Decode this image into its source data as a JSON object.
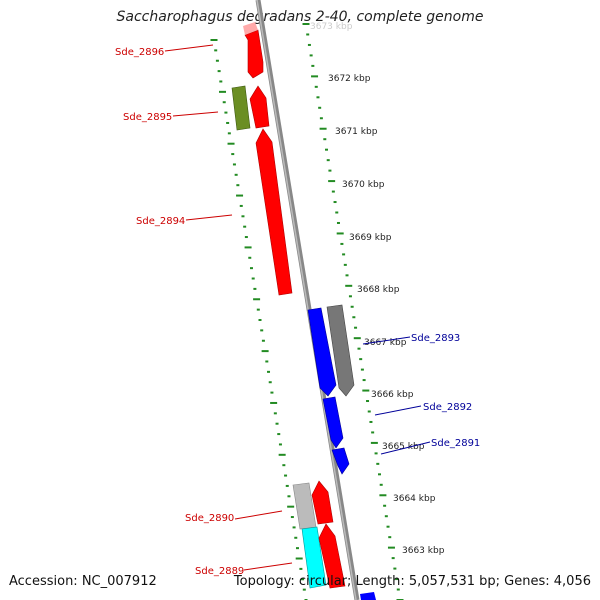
{
  "title": "Saccharophagus degradans 2-40, complete genome",
  "accession": "Accession: NC_007912",
  "summary": "Topology: circular; Length: 5,057,531 bp; Genes: 4,056",
  "colors": {
    "backbone": "#888888",
    "tick": "#228b22",
    "forward_gene": "#ff0000",
    "reverse_gene": "#0000ff",
    "olive_gene": "#6b8e23",
    "gray_gene": "#777777",
    "lightgray_gene": "#bbbbbb",
    "cyan_gene": "#00ffff",
    "forward_label": "#cc0000",
    "reverse_label": "#000099"
  },
  "kbp_ticks": [
    "3673 kbp",
    "3672 kbp",
    "3671 kbp",
    "3670 kbp",
    "3669 kbp",
    "3668 kbp",
    "3667 kbp",
    "3666 kbp",
    "3665 kbp",
    "3664 kbp",
    "3663 kbp"
  ],
  "gene_labels": [
    {
      "text": "Sde_2896",
      "strand": "forward"
    },
    {
      "text": "Sde_2895",
      "strand": "forward"
    },
    {
      "text": "Sde_2894",
      "strand": "forward"
    },
    {
      "text": "Sde_2893",
      "strand": "reverse"
    },
    {
      "text": "Sde_2892",
      "strand": "reverse"
    },
    {
      "text": "Sde_2891",
      "strand": "reverse"
    },
    {
      "text": "Sde_2890",
      "strand": "forward"
    },
    {
      "text": "Sde_2889",
      "strand": "forward"
    }
  ]
}
